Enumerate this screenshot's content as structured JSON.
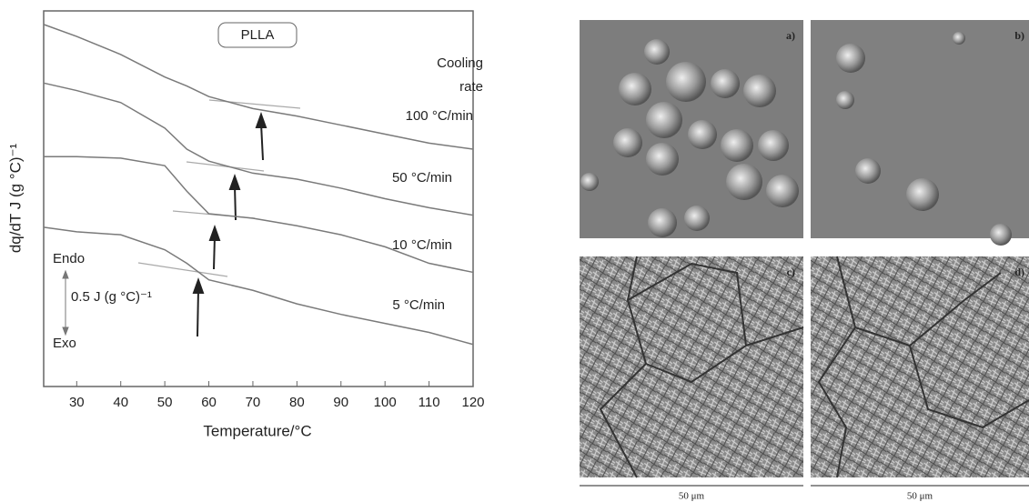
{
  "chart_data": {
    "type": "line",
    "x_label": "Temperature/°C",
    "y_label": "dq/dT J (g °C)⁻¹",
    "box_label": "PLLA",
    "legend_title": [
      "Cooling",
      "rate"
    ],
    "annotations": [
      "Endo",
      "0.5 J (g °C)⁻¹",
      "Exo"
    ],
    "x": [
      22.5,
      30,
      40,
      50,
      55,
      60,
      70,
      80,
      90,
      100,
      110,
      120
    ],
    "series": [
      {
        "name": "100 °C/min",
        "color": "#7a7a7a",
        "values": [
          2.41,
          2.33,
          2.21,
          2.06,
          2.0,
          1.93,
          1.85,
          1.8,
          1.74,
          1.68,
          1.62,
          1.58
        ]
      },
      {
        "name": "50 °C/min",
        "color": "#7a7a7a",
        "values": [
          2.02,
          1.97,
          1.89,
          1.72,
          1.58,
          1.5,
          1.42,
          1.38,
          1.32,
          1.25,
          1.19,
          1.14
        ]
      },
      {
        "name": "10 °C/min",
        "color": "#7a7a7a",
        "values": [
          1.53,
          1.53,
          1.52,
          1.47,
          1.3,
          1.15,
          1.12,
          1.07,
          1.01,
          0.93,
          0.82,
          0.76
        ]
      },
      {
        "name": "5 °C/min",
        "color": "#7a7a7a",
        "values": [
          1.06,
          1.03,
          1.01,
          0.91,
          0.82,
          0.71,
          0.64,
          0.55,
          0.48,
          0.42,
          0.36,
          0.28
        ]
      }
    ],
    "xlim": [
      22.5,
      120
    ],
    "xticks": [
      30,
      40,
      50,
      60,
      70,
      80,
      90,
      100,
      110,
      120
    ],
    "ylim": [
      0,
      2.5
    ]
  },
  "micrographs": {
    "panels": [
      "a)",
      "b)",
      "c)",
      "d)"
    ],
    "scale_bars": [
      "50 μm",
      "50 μm"
    ]
  }
}
